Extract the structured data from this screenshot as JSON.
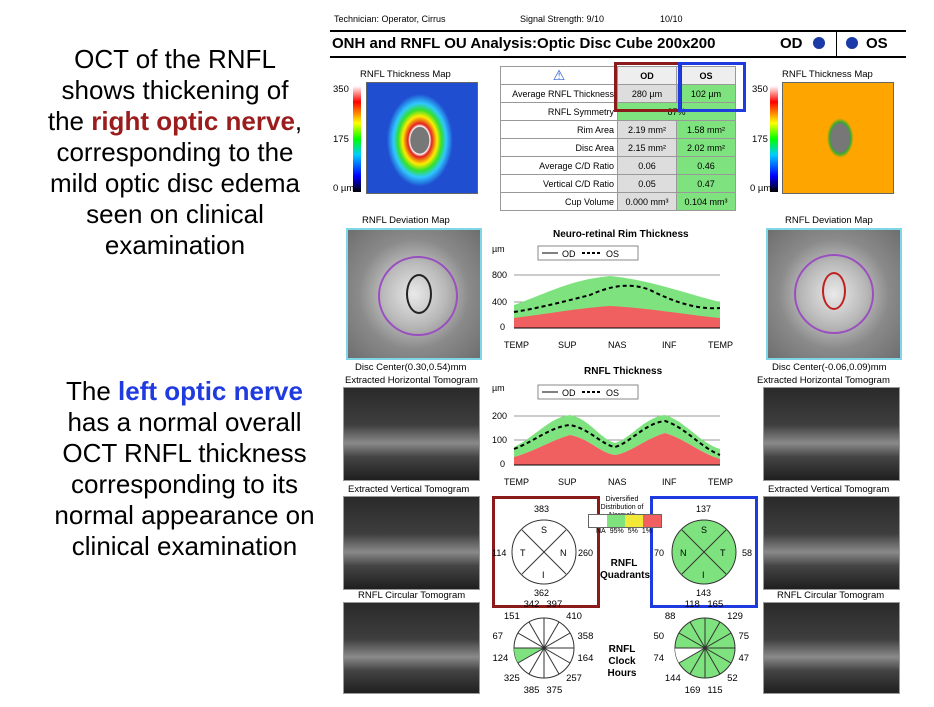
{
  "captions": {
    "right_pre": "OCT of the RNFL shows thickening of the ",
    "right_hl": "right optic nerve",
    "right_post": ", corresponding to the mild optic disc edema seen on clinical examination",
    "left_pre": "The ",
    "left_hl": "left optic nerve",
    "left_post": " has a normal overall OCT RNFL thickness corresponding to its normal appearance on clinical examination"
  },
  "report": {
    "technician": "Technician:  Operator, Cirrus",
    "signal": "Signal Strength:  9/10",
    "signal2": "10/10",
    "title": "ONH and RNFL OU Analysis:Optic Disc Cube 200x200",
    "od": "OD",
    "os": "OS",
    "thickness_map_title": "RNFL Thickness Map",
    "scale": [
      "350",
      "175",
      "0 µm"
    ],
    "deviation_map_title": "RNFL Deviation Map",
    "disc_center_od": "Disc Center(0.30,0.54)mm",
    "disc_center_os": "Disc Center(-0.06,0.09)mm",
    "h_tomo": "Extracted Horizontal Tomogram",
    "v_tomo": "Extracted Vertical Tomogram",
    "c_tomo": "RNFL Circular Tomogram",
    "tomo_od_marks": "T N",
    "tomo_os_marks": "N T"
  },
  "table": {
    "headers": [
      "",
      "OD",
      "OS"
    ],
    "rows": [
      {
        "label": "Average RNFL Thickness",
        "od": "280 µm",
        "os": "102 µm"
      },
      {
        "label": "RNFL Symmetry",
        "span": "87%"
      },
      {
        "label": "Rim Area",
        "od": "2.19 mm²",
        "os": "1.58 mm²"
      },
      {
        "label": "Disc Area",
        "od": "2.15 mm²",
        "os": "2.02 mm²"
      },
      {
        "label": "Average C/D Ratio",
        "od": "0.06",
        "os": "0.46"
      },
      {
        "label": "Vertical C/D Ratio",
        "od": "0.05",
        "os": "0.47"
      },
      {
        "label": "Cup Volume",
        "od": "0.000 mm³",
        "os": "0.104 mm³"
      }
    ]
  },
  "rim_chart": {
    "title": "Neuro-retinal Rim Thickness",
    "unit": "µm",
    "legend_od": "OD",
    "legend_os": "OS",
    "yticks": [
      "800",
      "400",
      "0"
    ],
    "xticks": [
      "TEMP",
      "SUP",
      "NAS",
      "INF",
      "TEMP"
    ]
  },
  "rnfl_chart": {
    "title": "RNFL Thickness",
    "unit": "µm",
    "legend_od": "OD",
    "legend_os": "OS",
    "yticks": [
      "200",
      "100",
      "0"
    ],
    "xticks": [
      "TEMP",
      "SUP",
      "NAS",
      "INF",
      "TEMP"
    ]
  },
  "quadrants": {
    "label": "RNFL Quadrants",
    "od": {
      "S": "383",
      "T": "114",
      "N": "260",
      "I": "362"
    },
    "os": {
      "S": "137",
      "N": "70",
      "T": "58",
      "I": "143"
    },
    "letters_od": [
      "S",
      "T",
      "N",
      "I"
    ],
    "letters_os": [
      "S",
      "N",
      "T",
      "I"
    ],
    "legend_title": "Diversified Distribution of Normals",
    "legend_ticks": [
      "NA",
      "95%",
      "5%",
      "1%"
    ]
  },
  "clock": {
    "label": "RNFL Clock Hours",
    "od": [
      "397",
      "410",
      "358",
      "164",
      "257",
      "375",
      "385",
      "325",
      "124",
      "67",
      "151",
      "342"
    ],
    "os": [
      "165",
      "129",
      "75",
      "47",
      "52",
      "115",
      "169",
      "144",
      "74",
      "50",
      "88",
      "118"
    ]
  },
  "colors": {
    "od_box": "#8b1a1a",
    "os_box": "#1f3be0",
    "normal_green": "#7ee37e",
    "red_zone": "#f06060"
  }
}
